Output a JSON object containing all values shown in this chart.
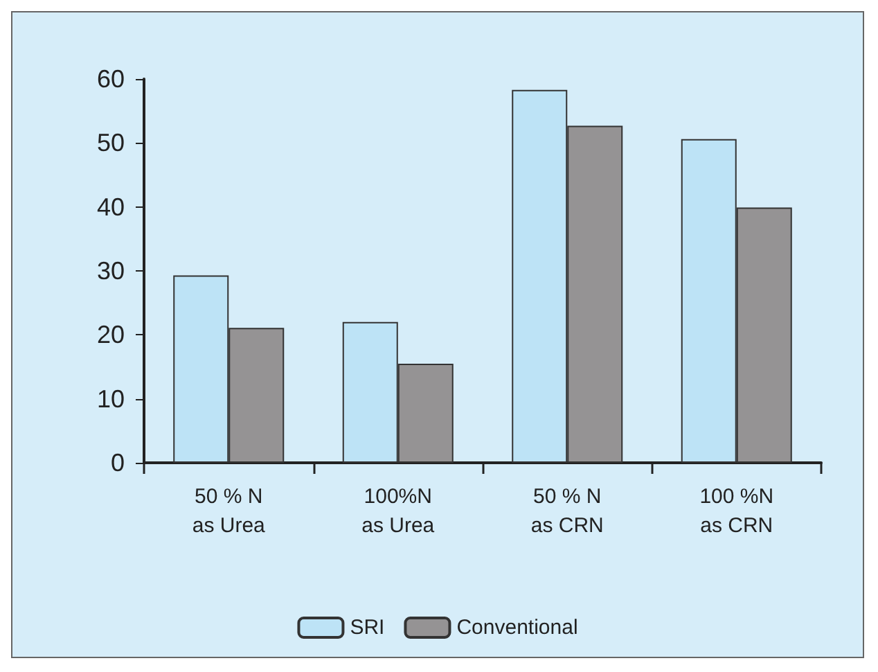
{
  "chart_data": {
    "type": "bar",
    "categories": [
      "50 % N\nas Urea",
      "100%N\nas Urea",
      "50 % N\nas CRN",
      "100 %N\nas CRN"
    ],
    "series": [
      {
        "name": "SRI",
        "color": "#bde3f6",
        "values": [
          29.3,
          22.0,
          58.3,
          50.6
        ]
      },
      {
        "name": "Conventional",
        "color": "#959394",
        "values": [
          21.1,
          15.5,
          52.7,
          39.9
        ]
      }
    ],
    "ylim": [
      0,
      60
    ],
    "yticks": [
      0,
      10,
      20,
      30,
      40,
      50,
      60
    ],
    "grid": false,
    "legend": "bottom"
  }
}
